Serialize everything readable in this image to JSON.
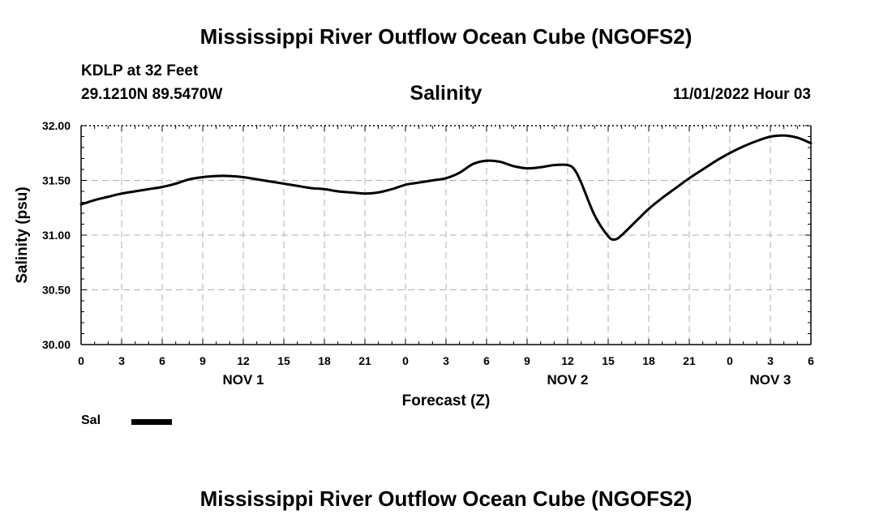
{
  "header": {
    "title": "Mississippi River Outflow Ocean Cube (NGOFS2)",
    "station": "KDLP at 32 Feet",
    "coordinates": "29.1210N  89.5470W",
    "variable": "Salinity",
    "timestamp": "11/01/2022 Hour 03"
  },
  "footer": {
    "title": "Mississippi River Outflow Ocean Cube (NGOFS2)"
  },
  "legend": {
    "position": "bottom-left",
    "items": [
      {
        "label": "Sal",
        "color": "#000000"
      }
    ]
  },
  "chart_data": {
    "type": "line",
    "title": "Salinity",
    "xlabel": "Forecast (Z)",
    "ylabel": "Salinity (psu)",
    "ylim": [
      30.0,
      32.0
    ],
    "xlim_hours": [
      0,
      54
    ],
    "grid": true,
    "y_ticks": [
      "30.00",
      "30.50",
      "31.00",
      "31.50",
      "32.00"
    ],
    "y_tick_values": [
      30.0,
      30.5,
      31.0,
      31.5,
      32.0
    ],
    "x_ticks": [
      {
        "hour": 0,
        "label": "0"
      },
      {
        "hour": 3,
        "label": "3"
      },
      {
        "hour": 6,
        "label": "6"
      },
      {
        "hour": 9,
        "label": "9"
      },
      {
        "hour": 12,
        "label": "12"
      },
      {
        "hour": 15,
        "label": "15"
      },
      {
        "hour": 18,
        "label": "18"
      },
      {
        "hour": 21,
        "label": "21"
      },
      {
        "hour": 24,
        "label": "0"
      },
      {
        "hour": 27,
        "label": "3"
      },
      {
        "hour": 30,
        "label": "6"
      },
      {
        "hour": 33,
        "label": "9"
      },
      {
        "hour": 36,
        "label": "12"
      },
      {
        "hour": 39,
        "label": "15"
      },
      {
        "hour": 42,
        "label": "18"
      },
      {
        "hour": 45,
        "label": "21"
      },
      {
        "hour": 48,
        "label": "0"
      },
      {
        "hour": 51,
        "label": "3"
      },
      {
        "hour": 54,
        "label": "6"
      }
    ],
    "day_labels": [
      {
        "hour": 12,
        "label": "NOV 1"
      },
      {
        "hour": 36,
        "label": "NOV 2"
      },
      {
        "hour": 51,
        "label": "NOV 3"
      }
    ],
    "series": [
      {
        "name": "Sal",
        "color": "#000000",
        "x": [
          0,
          1,
          2,
          3,
          4,
          5,
          6,
          7,
          8,
          9,
          10,
          11,
          12,
          13,
          14,
          15,
          16,
          17,
          18,
          19,
          20,
          21,
          22,
          23,
          24,
          25,
          26,
          27,
          28,
          29,
          30,
          31,
          32,
          33,
          34,
          35,
          36,
          36.5,
          37,
          38,
          39,
          39.5,
          40,
          41,
          42,
          43,
          44,
          45,
          46,
          47,
          48,
          49,
          50,
          51,
          52,
          53,
          54
        ],
        "y": [
          31.28,
          31.32,
          31.35,
          31.38,
          31.4,
          31.42,
          31.44,
          31.47,
          31.51,
          31.53,
          31.54,
          31.54,
          31.53,
          31.51,
          31.49,
          31.47,
          31.45,
          31.43,
          31.42,
          31.4,
          31.39,
          31.38,
          31.39,
          31.42,
          31.46,
          31.48,
          31.5,
          31.52,
          31.57,
          31.65,
          31.68,
          31.67,
          31.63,
          31.61,
          31.62,
          31.64,
          31.64,
          31.6,
          31.48,
          31.18,
          30.99,
          30.96,
          31.0,
          31.12,
          31.24,
          31.34,
          31.43,
          31.52,
          31.6,
          31.68,
          31.75,
          31.81,
          31.86,
          31.9,
          31.91,
          31.89,
          31.84
        ]
      }
    ]
  }
}
